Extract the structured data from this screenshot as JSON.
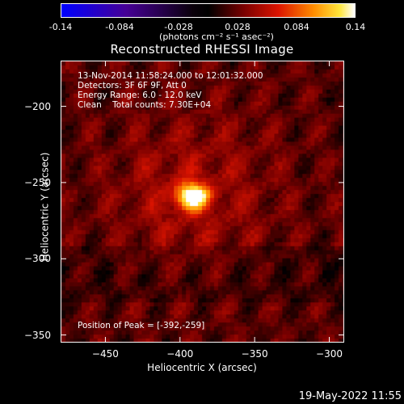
{
  "colorbar": {
    "ticks": [
      "-0.14",
      "-0.084",
      "-0.028",
      "0.028",
      "0.084",
      "0.14"
    ],
    "unit_label": "(photons cm⁻² s⁻¹ asec⁻²)"
  },
  "title": "Reconstructed RHESSI Image",
  "info": {
    "time": "13-Nov-2014 11:58:24.000 to 12:01:32.000",
    "detectors": "Detectors: 3F 6F 9F, Att 0",
    "energy": "Energy Range: 6.0 - 12.0 keV",
    "clean": "Clean    Total counts: 7.30E+04",
    "peak": "Position of Peak = [-392,-259]"
  },
  "footer": {
    "date": "19-May-2022 11:55"
  },
  "chart_data": {
    "type": "heatmap",
    "title": "Reconstructed RHESSI Image",
    "xlabel": "Heliocentric X (arcsec)",
    "ylabel": "Heliocentric Y (arcsec)",
    "xlim": [
      -480,
      -290
    ],
    "ylim": [
      -355,
      -170
    ],
    "xticks": [
      -450,
      -400,
      -350,
      -300
    ],
    "yticks": [
      -200,
      -250,
      -300,
      -350
    ],
    "colorbar_range": [
      -0.14,
      0.14
    ],
    "colormap": "heat",
    "peak": {
      "x": -392,
      "y": -259
    },
    "colors": {
      "background": "#000000",
      "axes": "#ffffff"
    }
  }
}
